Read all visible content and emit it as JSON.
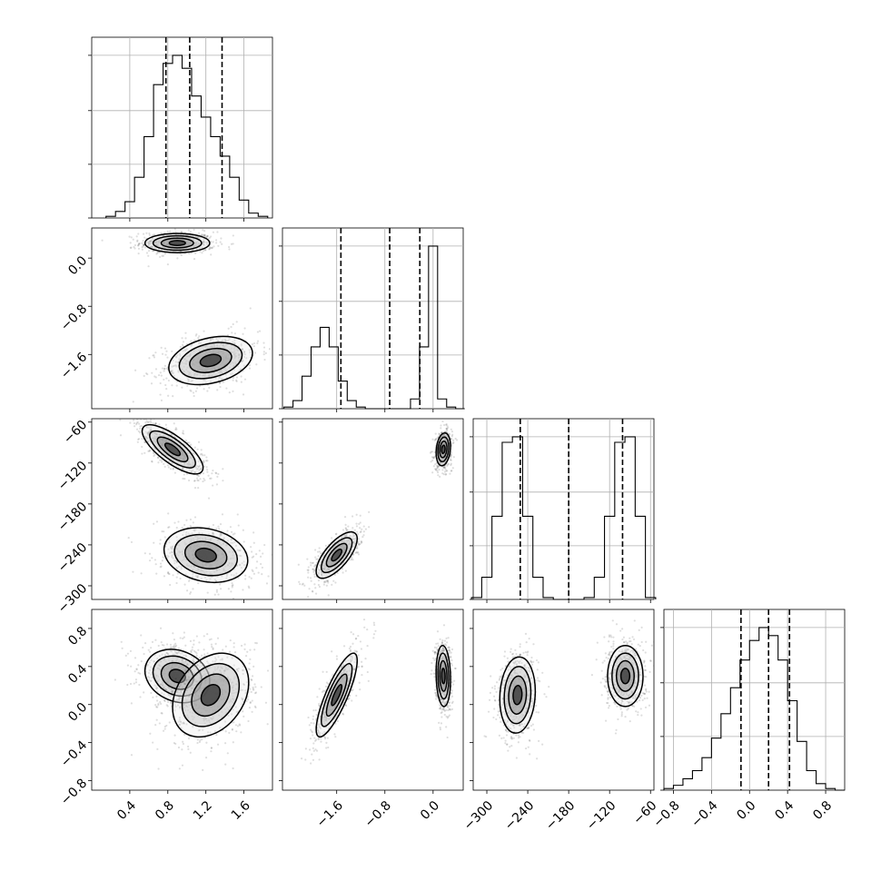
{
  "chart_data": {
    "type": "corner",
    "parameters": [
      {
        "range": [
          0.0,
          1.9
        ],
        "ticks": [
          "0.4",
          "0.8",
          "1.2",
          "1.6"
        ],
        "tick_values": [
          0.4,
          0.8,
          1.2,
          1.6
        ],
        "quantiles": [
          0.78,
          1.03,
          1.37
        ]
      },
      {
        "range": [
          -2.5,
          0.5
        ],
        "ticks": [
          "−1.6",
          "−0.8",
          "0.0"
        ],
        "tick_values": [
          -1.6,
          -0.8,
          0.0
        ],
        "quantiles": [
          -1.53,
          -0.72,
          -0.22
        ]
      },
      {
        "range": [
          -320,
          -55
        ],
        "ticks": [
          "−300",
          "−240",
          "−180",
          "−120",
          "−60"
        ],
        "tick_values": [
          -300,
          -240,
          -180,
          -120,
          -60
        ],
        "quantiles": [
          -251,
          -180,
          -101
        ]
      },
      {
        "range": [
          -0.9,
          1.0
        ],
        "ticks": [
          "−0.8",
          "−0.4",
          "0.0",
          "0.4",
          "0.8"
        ],
        "tick_values": [
          -0.8,
          -0.4,
          0.0,
          0.4,
          0.8
        ],
        "quantiles": [
          -0.09,
          0.2,
          0.42
        ]
      }
    ],
    "histograms": [
      {
        "param": 0,
        "bins": [
          0.2,
          0.3,
          0.4,
          0.5,
          0.6,
          0.7,
          0.8,
          0.9,
          1.0,
          1.1,
          1.2,
          1.3,
          1.4,
          1.5,
          1.6,
          1.7,
          1.8
        ],
        "counts": [
          0.01,
          0.04,
          0.1,
          0.25,
          0.5,
          0.82,
          0.95,
          1.0,
          0.92,
          0.75,
          0.62,
          0.5,
          0.38,
          0.25,
          0.11,
          0.03,
          0.01
        ]
      },
      {
        "param": 1,
        "bins": [
          -2.4,
          -2.25,
          -2.1,
          -1.95,
          -1.8,
          -1.65,
          -1.5,
          -1.35,
          -1.2,
          -1.05,
          -0.9,
          -0.75,
          -0.6,
          -0.45,
          -0.3,
          -0.15,
          0.0,
          0.15,
          0.3,
          0.45
        ],
        "counts": [
          0.01,
          0.05,
          0.2,
          0.38,
          0.5,
          0.38,
          0.17,
          0.05,
          0.01,
          0,
          0,
          0,
          0,
          0,
          0.06,
          0.38,
          1.0,
          0.06,
          0.01,
          0
        ]
      },
      {
        "param": 2,
        "bins": [
          -315,
          -300,
          -285,
          -270,
          -255,
          -240,
          -225,
          -210,
          -195,
          -180,
          -165,
          -150,
          -135,
          -120,
          -105,
          -90,
          -75,
          -60
        ],
        "counts": [
          0.01,
          0.12,
          0.45,
          0.85,
          0.88,
          0.45,
          0.12,
          0.01,
          0,
          0,
          0,
          0.01,
          0.12,
          0.45,
          0.85,
          0.88,
          0.45,
          0.01
        ]
      },
      {
        "param": 3,
        "bins": [
          -0.85,
          -0.75,
          -0.65,
          -0.55,
          -0.45,
          -0.35,
          -0.25,
          -0.15,
          -0.05,
          0.05,
          0.15,
          0.25,
          0.35,
          0.45,
          0.55,
          0.65,
          0.75,
          0.85,
          0.95
        ],
        "counts": [
          0.01,
          0.03,
          0.07,
          0.12,
          0.2,
          0.32,
          0.47,
          0.63,
          0.8,
          0.92,
          1.0,
          0.95,
          0.8,
          0.55,
          0.3,
          0.12,
          0.04,
          0.01,
          0
        ]
      }
    ],
    "correlations": [
      {
        "x": 0,
        "y": 1,
        "modes": [
          {
            "mx": 0.9,
            "my": 0.25,
            "sx": 0.17,
            "sy": 0.08,
            "rho": 0.0,
            "weight": 0.5
          },
          {
            "mx": 1.25,
            "my": -1.7,
            "sx": 0.22,
            "sy": 0.2,
            "rho": 0.3,
            "weight": 0.5
          }
        ]
      },
      {
        "x": 0,
        "y": 2,
        "modes": [
          {
            "mx": 0.85,
            "my": -100,
            "sx": 0.16,
            "sy": 18,
            "rho": -0.75,
            "weight": 0.5
          },
          {
            "mx": 1.2,
            "my": -255,
            "sx": 0.22,
            "sy": 20,
            "rho": -0.2,
            "weight": 0.5
          }
        ]
      },
      {
        "x": 0,
        "y": 3,
        "modes": [
          {
            "mx": 0.9,
            "my": 0.3,
            "sx": 0.17,
            "sy": 0.14,
            "rho": -0.2,
            "weight": 0.5
          },
          {
            "mx": 1.25,
            "my": 0.1,
            "sx": 0.2,
            "sy": 0.22,
            "rho": 0.3,
            "weight": 0.5
          }
        ]
      },
      {
        "x": 1,
        "y": 2,
        "modes": [
          {
            "mx": 0.17,
            "my": -100,
            "sx": 0.06,
            "sy": 12,
            "rho": 0.2,
            "weight": 0.5
          },
          {
            "mx": -1.6,
            "my": -255,
            "sx": 0.17,
            "sy": 17,
            "rho": 0.7,
            "weight": 0.5
          }
        ]
      },
      {
        "x": 1,
        "y": 3,
        "modes": [
          {
            "mx": 0.17,
            "my": 0.3,
            "sx": 0.06,
            "sy": 0.16,
            "rho": -0.1,
            "weight": 0.5
          },
          {
            "mx": -1.6,
            "my": 0.1,
            "sx": 0.17,
            "sy": 0.22,
            "rho": 0.82,
            "weight": 0.5
          }
        ]
      },
      {
        "x": 2,
        "y": 3,
        "modes": [
          {
            "mx": -97,
            "my": 0.3,
            "sx": 13,
            "sy": 0.16,
            "rho": 0.0,
            "weight": 0.5
          },
          {
            "mx": -255,
            "my": 0.1,
            "sx": 13,
            "sy": 0.2,
            "rho": 0.1,
            "weight": 0.5
          }
        ]
      }
    ],
    "grid": true,
    "title": "",
    "xlabel": "",
    "ylabel": ""
  }
}
